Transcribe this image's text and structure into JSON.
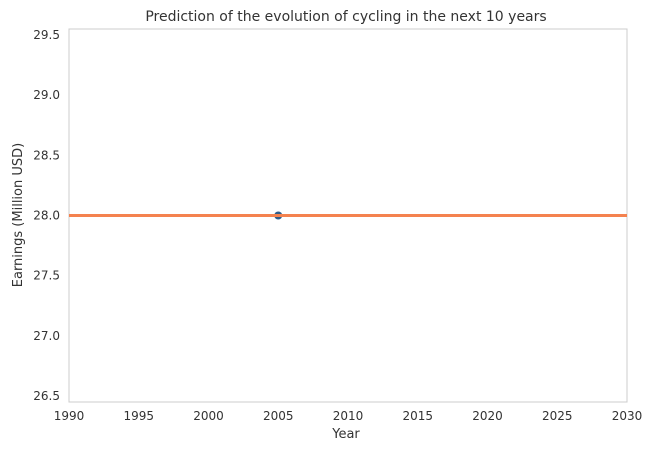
{
  "chart_data": {
    "type": "line",
    "title": "Prediction of the evolution of cycling in the next 10 years",
    "xlabel": "Year",
    "ylabel": "Earnings (Million USD)",
    "xlim": [
      1990,
      2030
    ],
    "ylim": [
      26.45,
      29.55
    ],
    "xticks": [
      "1990",
      "1995",
      "2000",
      "2005",
      "2010",
      "2015",
      "2020",
      "2025",
      "2030"
    ],
    "yticks": [
      "26.5",
      "27.0",
      "27.5",
      "28.0",
      "28.5",
      "29.0",
      "29.5"
    ],
    "grid": false,
    "series": [
      {
        "type": "scatter",
        "x": [
          2005
        ],
        "y": [
          28.0
        ],
        "color": "#2f5d8a"
      },
      {
        "type": "line",
        "x": [
          1990,
          2030
        ],
        "y": [
          28.0,
          28.0
        ],
        "color": "#f4824f"
      }
    ]
  }
}
